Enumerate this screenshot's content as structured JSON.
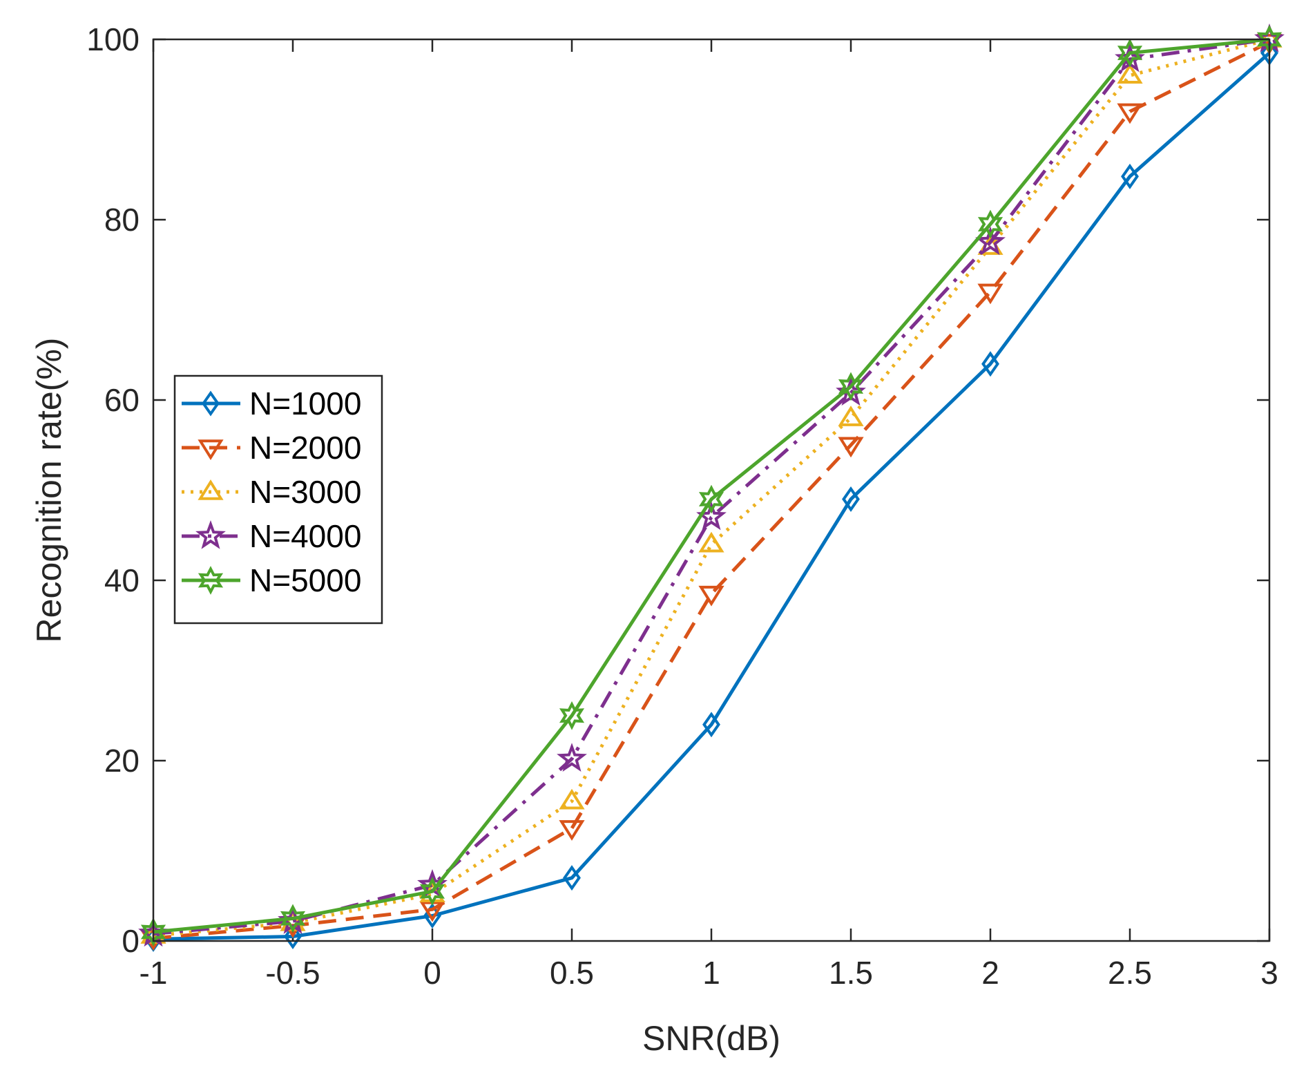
{
  "chart_data": {
    "type": "line",
    "title": "",
    "xlabel": "SNR(dB)",
    "ylabel": "Recognition rate(%)",
    "xlim": [
      -1,
      3
    ],
    "ylim": [
      0,
      100
    ],
    "x": [
      -1,
      -0.5,
      0,
      0.5,
      1,
      1.5,
      2,
      2.5,
      3
    ],
    "xticks": [
      -1,
      -0.5,
      0,
      0.5,
      1,
      1.5,
      2,
      2.5,
      3
    ],
    "xtick_labels": [
      "-1",
      "-0.5",
      "0",
      "0.5",
      "1",
      "1.5",
      "2",
      "2.5",
      "3"
    ],
    "yticks": [
      0,
      20,
      40,
      60,
      80,
      100
    ],
    "ytick_labels": [
      "0",
      "20",
      "40",
      "60",
      "80",
      "100"
    ],
    "grid": false,
    "legend_position": "left-middle",
    "series": [
      {
        "name": "N=1000",
        "color": "#0072BD",
        "dash": "solid",
        "marker": "diamond",
        "values": [
          0.2,
          0.5,
          2.8,
          7.0,
          24.0,
          49.0,
          64.0,
          84.8,
          98.5
        ]
      },
      {
        "name": "N=2000",
        "color": "#D95319",
        "dash": "dashed",
        "marker": "triangle-down",
        "values": [
          0.3,
          1.7,
          3.5,
          12.5,
          38.5,
          55.0,
          72.0,
          92.0,
          99.7
        ]
      },
      {
        "name": "N=3000",
        "color": "#EDB120",
        "dash": "dotted",
        "marker": "triangle-up",
        "values": [
          0.6,
          2.0,
          5.2,
          15.5,
          44.0,
          58.0,
          77.0,
          96.0,
          100.0
        ]
      },
      {
        "name": "N=4000",
        "color": "#7E2F8E",
        "dash": "dashdot",
        "marker": "star",
        "values": [
          0.8,
          2.2,
          6.2,
          20.2,
          47.0,
          60.8,
          77.5,
          97.8,
          100.0
        ]
      },
      {
        "name": "N=5000",
        "color": "#4DA52C",
        "dash": "solid",
        "marker": "hexagram",
        "values": [
          1.0,
          2.5,
          5.5,
          25.0,
          49.0,
          61.5,
          79.5,
          98.5,
          100.0
        ]
      }
    ]
  }
}
